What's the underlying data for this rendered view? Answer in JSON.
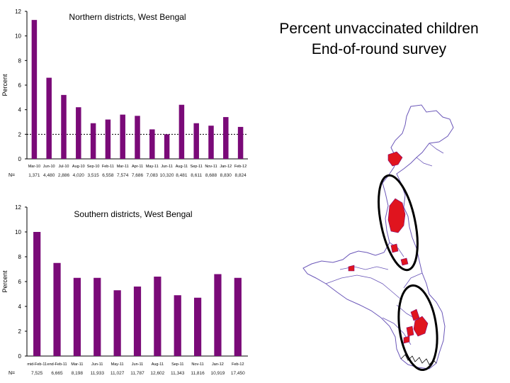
{
  "slide": {
    "title_line1": "Percent unvaccinated children",
    "title_line2": "End-of-round survey"
  },
  "colors": {
    "bar": "#7a0a78",
    "map_highlight": "#e0141e",
    "map_border": "#6a56b8",
    "circle": "#000000"
  },
  "chart_data": [
    {
      "type": "bar",
      "title": "Northern districts, West Bengal",
      "xlabel": "",
      "ylabel": "Percent",
      "ylim": [
        0,
        12
      ],
      "yticks": [
        0,
        2,
        4,
        6,
        8,
        10,
        12
      ],
      "reference_line": 2,
      "grid": false,
      "categories": [
        "Mar-10",
        "Jun-10",
        "Jul-10",
        "Aug-10",
        "Sep-10",
        "Feb-11",
        "Mar-11",
        "Apr-11",
        "May-11",
        "Jun-11",
        "Aug-11",
        "Sep-11",
        "Nov-11",
        "Jan-12",
        "Feb-12"
      ],
      "values": [
        11.3,
        6.6,
        5.2,
        4.2,
        2.9,
        3.2,
        3.6,
        3.5,
        2.4,
        2.0,
        4.4,
        2.9,
        2.7,
        3.4,
        2.6
      ],
      "n_label": "N=",
      "n_values": [
        "1,371",
        "4,480",
        "2,886",
        "4,020",
        "3,515",
        "6,558",
        "7,574",
        "7,686",
        "7,083",
        "10,320",
        "8,481",
        "8,611",
        "8,688",
        "8,830",
        "8,824"
      ]
    },
    {
      "type": "bar",
      "title": "Southern districts, West Bengal",
      "xlabel": "",
      "ylabel": "Percent",
      "ylim": [
        0,
        12
      ],
      "yticks": [
        0,
        2,
        4,
        6,
        8,
        10,
        12
      ],
      "grid": false,
      "categories": [
        "mid-Feb-11",
        "end-Feb-11",
        "Mar-11",
        "Jun-11",
        "May-11",
        "Jun-11",
        "Aug-11",
        "Sep-11",
        "Nov-11",
        "Jan-12",
        "Feb-12"
      ],
      "values": [
        10.0,
        7.5,
        6.3,
        6.3,
        5.3,
        5.6,
        6.4,
        4.9,
        4.7,
        6.6,
        6.3
      ],
      "n_label": "N=",
      "n_values": [
        "7,525",
        "6,665",
        "8,198",
        "11,933",
        "11,027",
        "11,787",
        "12,602",
        "11,343",
        "11,816",
        "10,919",
        "17,450"
      ]
    }
  ]
}
